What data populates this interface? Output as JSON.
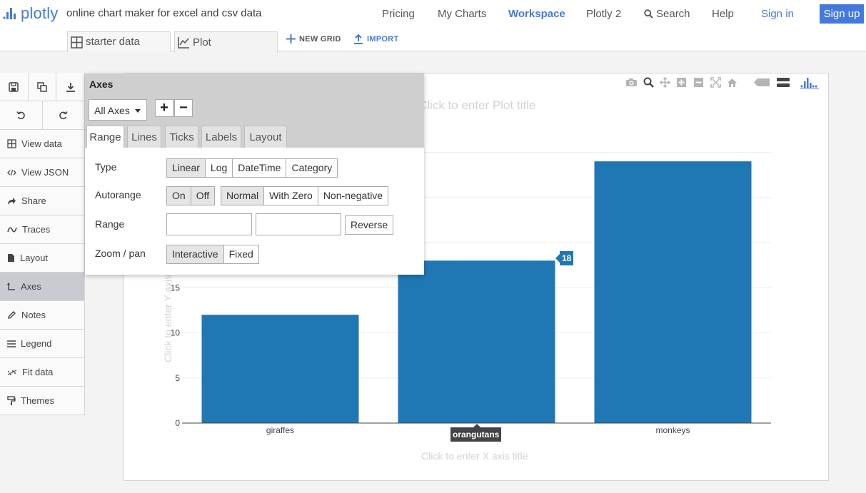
{
  "brand": {
    "name": "plotly",
    "tagline": "online chart maker for excel and csv data"
  },
  "nav": {
    "pricing": "Pricing",
    "my_charts": "My Charts",
    "workspace": "Workspace",
    "plotly2": "Plotly 2",
    "search": "Search",
    "help": "Help",
    "sign_in": "Sign in",
    "sign_up": "Sign up"
  },
  "tabs": {
    "starter_data": "starter data",
    "plot": "Plot",
    "new_grid": "NEW GRID",
    "import": "IMPORT"
  },
  "sidebar": {
    "items": [
      {
        "label": "View data",
        "icon": "grid-icon"
      },
      {
        "label": "View JSON",
        "icon": "code-icon"
      },
      {
        "label": "Share",
        "icon": "share-icon"
      },
      {
        "label": "Traces",
        "icon": "traces-icon"
      },
      {
        "label": "Layout",
        "icon": "layout-icon"
      },
      {
        "label": "Axes",
        "icon": "axes-icon",
        "active": true
      },
      {
        "label": "Notes",
        "icon": "pencil-icon"
      },
      {
        "label": "Legend",
        "icon": "legend-icon"
      },
      {
        "label": "Fit data",
        "icon": "fit-data-icon"
      },
      {
        "label": "Themes",
        "icon": "paint-roller-icon"
      }
    ]
  },
  "axes_panel": {
    "title": "Axes",
    "axis_select": "All Axes",
    "tabs": [
      "Range",
      "Lines",
      "Ticks",
      "Labels",
      "Layout"
    ],
    "active_tab": "Range",
    "type": {
      "label": "Type",
      "options": [
        "Linear",
        "Log",
        "DateTime",
        "Category"
      ]
    },
    "autorange": {
      "label": "Autorange",
      "toggle": [
        "On",
        "Off"
      ],
      "selected_toggle": "On",
      "modes": [
        "Normal",
        "With Zero",
        "Non-negative"
      ],
      "selected_mode": "Normal"
    },
    "range": {
      "label": "Range",
      "min": "",
      "max": "",
      "reverse": "Reverse"
    },
    "zoom_pan": {
      "label": "Zoom / pan",
      "options": [
        "Interactive",
        "Fixed"
      ],
      "selected": "Interactive"
    }
  },
  "plot": {
    "title_placeholder": "Click to enter Plot title",
    "x_title_placeholder": "Click to enter X axis title",
    "y_title_placeholder": "Click to enter Y axis title",
    "hover_x": "orangutans",
    "hover_y": "18"
  },
  "chart_data": {
    "type": "bar",
    "categories": [
      "giraffes",
      "orangutans",
      "monkeys"
    ],
    "values": [
      12,
      18,
      29
    ],
    "bar_color": "#1f77b4",
    "yticks": [
      0,
      5,
      10,
      15
    ],
    "ylim": [
      0,
      30.5
    ],
    "grid": true,
    "title": "",
    "xlabel": "",
    "ylabel": ""
  },
  "colors": {
    "accent": "#447adb",
    "bar": "#1f77b4"
  }
}
